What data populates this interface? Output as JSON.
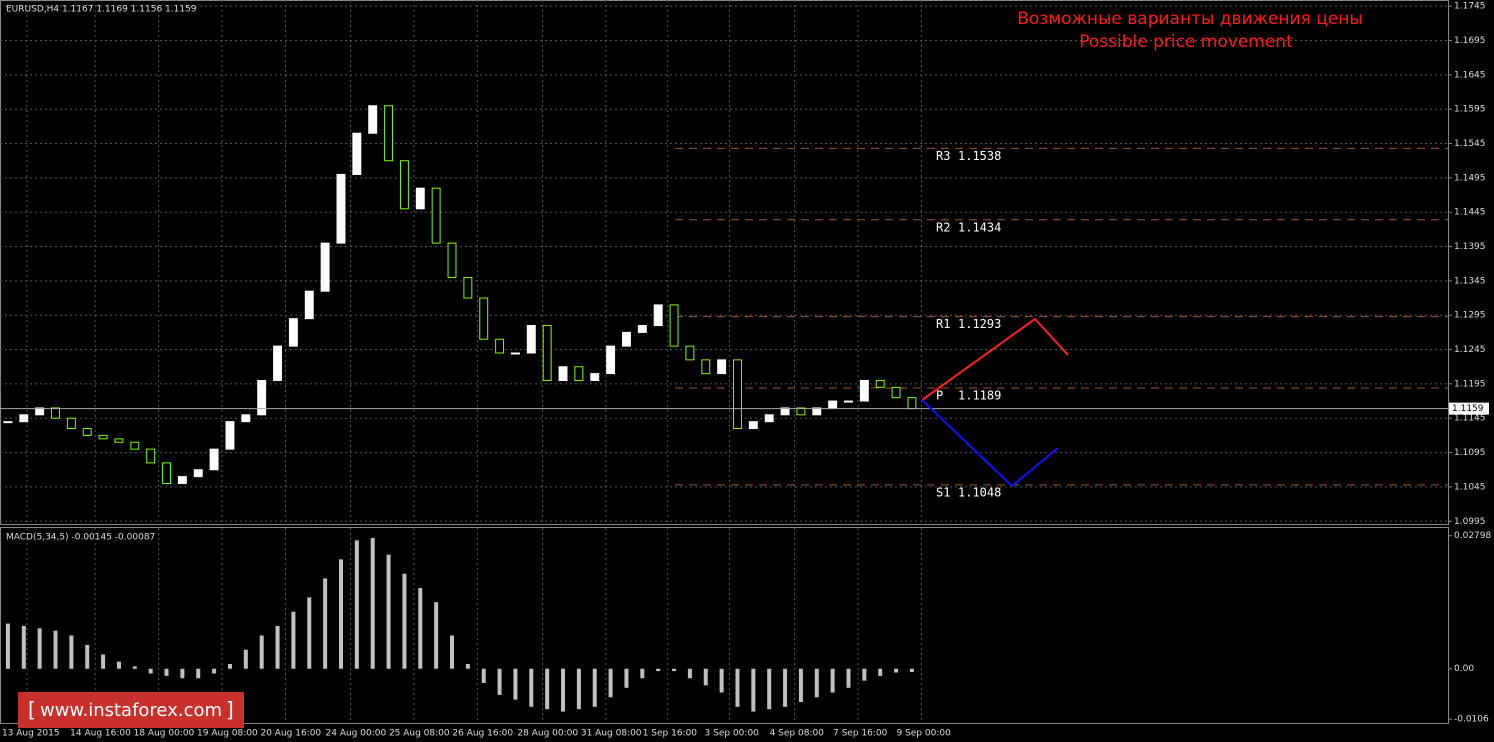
{
  "chart_data": {
    "type": "candlestick",
    "header": "EURUSD,H4  1.1167 1.1169 1.1156 1.1159",
    "title": "Возможные варианты движения цены",
    "subtitle": "Possible price movement",
    "watermark": "www.instaforex.com",
    "current_price": 1.1159,
    "closes": [
      1.114,
      1.115,
      1.116,
      1.1145,
      1.113,
      1.112,
      1.1115,
      1.111,
      1.11,
      1.108,
      1.105,
      1.106,
      1.107,
      1.11,
      1.114,
      1.115,
      1.12,
      1.125,
      1.129,
      1.133,
      1.14,
      1.15,
      1.156,
      1.16,
      1.152,
      1.145,
      1.148,
      1.14,
      1.135,
      1.132,
      1.126,
      1.124,
      1.124,
      1.128,
      1.12,
      1.122,
      1.12,
      1.121,
      1.125,
      1.127,
      1.128,
      1.131,
      1.125,
      1.123,
      1.121,
      1.123,
      1.113,
      1.114,
      1.115,
      1.116,
      1.115,
      1.116,
      1.117,
      1.117,
      1.12,
      1.119,
      1.1175,
      1.1159
    ],
    "xlim": [
      -0.5,
      90.8
    ],
    "xticks": [
      {
        "value": 1.2,
        "label": "13 Aug 2015"
      },
      {
        "value": 5.5,
        "label": "14 Aug 16:00"
      },
      {
        "value": 9.5,
        "label": "18 Aug 00:00"
      },
      {
        "value": 13.5,
        "label": "19 Aug 08:00"
      },
      {
        "value": 17.5,
        "label": "20 Aug 16:00"
      },
      {
        "value": 21.6,
        "label": "24 Aug 00:00"
      },
      {
        "value": 25.6,
        "label": "25 Aug 08:00"
      },
      {
        "value": 29.6,
        "label": "26 Aug 16:00"
      },
      {
        "value": 33.7,
        "label": "28 Aug 00:00"
      },
      {
        "value": 37.7,
        "label": "31 Aug 08:00"
      },
      {
        "value": 41.6,
        "label": "1 Sep 16:00"
      },
      {
        "value": 45.5,
        "label": "3 Sep 00:00"
      },
      {
        "value": 49.6,
        "label": "4 Sep 08:00"
      },
      {
        "value": 53.6,
        "label": "7 Sep 16:00"
      },
      {
        "value": 57.6,
        "label": "9 Sep 00:00"
      }
    ],
    "ylim": [
      1.0991,
      1.1754
    ],
    "yticks": [
      1.1745,
      1.1695,
      1.1645,
      1.1595,
      1.1545,
      1.1495,
      1.1445,
      1.1395,
      1.1345,
      1.1295,
      1.1245,
      1.1195,
      1.1145,
      1.1095,
      1.1045,
      1.0995
    ],
    "pivots": [
      {
        "name": "R3",
        "value": 1.1538
      },
      {
        "name": "R2",
        "value": 1.1434
      },
      {
        "name": "R1",
        "value": 1.1293
      },
      {
        "name": "P",
        "value": 1.1189
      },
      {
        "name": "S1",
        "value": 1.1048
      }
    ],
    "macd": {
      "label": "MACD(5,34,5) -0.00145 -0.00087",
      "values": [
        0.0095,
        0.009,
        0.0085,
        0.008,
        0.007,
        0.005,
        0.003,
        0.0015,
        0.0005,
        -0.001,
        -0.0015,
        -0.002,
        -0.002,
        -0.001,
        0.001,
        0.004,
        0.007,
        0.009,
        0.012,
        0.015,
        0.019,
        0.023,
        0.027,
        0.0275,
        0.024,
        0.02,
        0.017,
        0.014,
        0.007,
        0.001,
        -0.003,
        -0.0055,
        -0.0065,
        -0.008,
        -0.0085,
        -0.009,
        -0.0085,
        -0.008,
        -0.006,
        -0.004,
        -0.002,
        -0.0005,
        -0.0005,
        -0.002,
        -0.0035,
        -0.005,
        -0.008,
        -0.009,
        -0.0085,
        -0.008,
        -0.007,
        -0.006,
        -0.005,
        -0.004,
        -0.0025,
        -0.0015,
        -0.0008,
        -0.0007
      ],
      "color": "#c0c0c0",
      "ylim": [
        -0.0112,
        0.0296
      ],
      "yticks": [
        0.02798,
        {
          "value": 0,
          "label": "0.00"
        },
        -0.0106
      ]
    }
  }
}
